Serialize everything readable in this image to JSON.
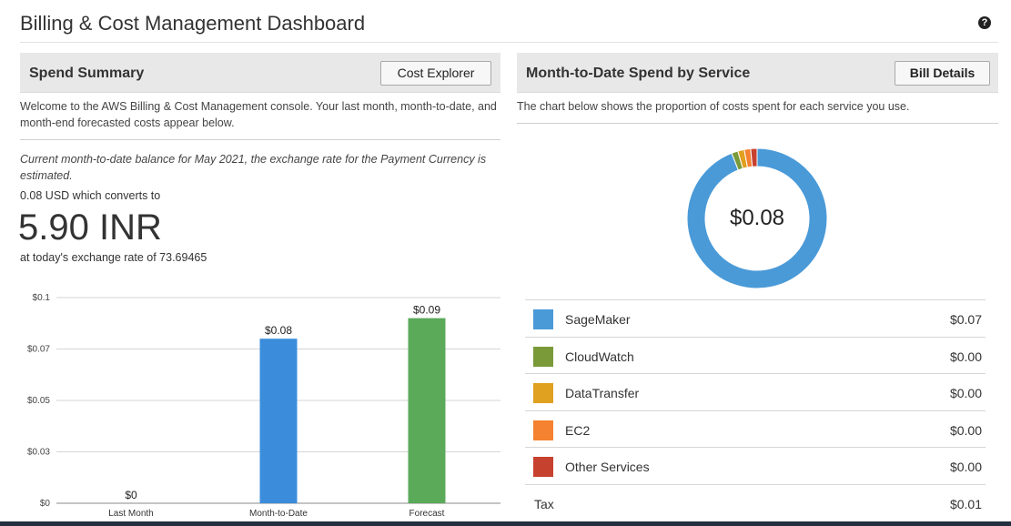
{
  "header": {
    "title": "Billing & Cost Management Dashboard",
    "help_icon": "question-circle-icon"
  },
  "spend_summary": {
    "title": "Spend Summary",
    "button_label": "Cost Explorer",
    "description": "Welcome to the AWS Billing & Cost Management console. Your last month, month-to-date, and month-end forecasted costs appear below.",
    "balance_note": "Current month-to-date balance for May 2021, the exchange rate for the Payment Currency is estimated.",
    "converts_text": "0.08 USD which converts to",
    "inr_amount": "5.90 INR",
    "rate_text": "at today's exchange rate of 73.69465"
  },
  "service_spend": {
    "title": "Month-to-Date Spend by Service",
    "button_label": "Bill Details",
    "description": "The chart below shows the proportion of costs spent for each service you use.",
    "donut_total": "$0.08"
  },
  "legend": [
    {
      "name": "SageMaker",
      "value": "$0.07",
      "color": "#4a9ad8"
    },
    {
      "name": "CloudWatch",
      "value": "$0.00",
      "color": "#7a9a3a"
    },
    {
      "name": "DataTransfer",
      "value": "$0.00",
      "color": "#e0a020"
    },
    {
      "name": "EC2",
      "value": "$0.00",
      "color": "#f58230"
    },
    {
      "name": "Other Services",
      "value": "$0.00",
      "color": "#c7412f"
    }
  ],
  "tax": {
    "name": "Tax",
    "value": "$0.01"
  },
  "chart_data": [
    {
      "type": "bar",
      "categories": [
        "Last Month",
        "Month-to-Date",
        "Forecast"
      ],
      "values": [
        0,
        0.08,
        0.09
      ],
      "data_labels": [
        "$0",
        "$0.08",
        "$0.09"
      ],
      "colors": [
        "#3b7ed8",
        "#3b8ddb",
        "#5aaa5a"
      ],
      "y_ticks": [
        "$0",
        "$0.03",
        "$0.05",
        "$0.07",
        "$0.1"
      ],
      "y_tick_values": [
        0,
        0.025,
        0.05,
        0.075,
        0.1
      ],
      "ylim": [
        0,
        0.1
      ],
      "grid": true
    },
    {
      "type": "pie",
      "categories": [
        "SageMaker",
        "CloudWatch",
        "DataTransfer",
        "EC2",
        "Other Services"
      ],
      "values": [
        0.07,
        0.0011,
        0.0011,
        0.0011,
        0.0011
      ],
      "colors": [
        "#4a9ad8",
        "#7a9a3a",
        "#e0a020",
        "#f58230",
        "#c7412f"
      ],
      "center_label": "$0.08"
    }
  ]
}
